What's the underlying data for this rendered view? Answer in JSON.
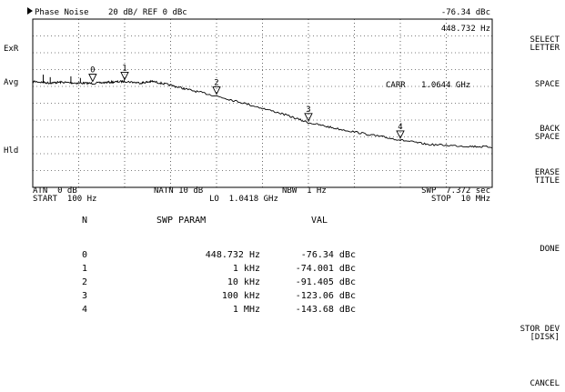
{
  "header": {
    "title": "Phase Noise",
    "scale_ref": "20 dB/ REF 0 dBc",
    "marker_value": "-76.34 dBc",
    "marker_freq": "448.732 Hz"
  },
  "side_labels": [
    "ExR",
    "Avg",
    "Hld"
  ],
  "carrier": {
    "label": "CARR",
    "value": "1.0644 GHz"
  },
  "footer": {
    "atn": "ATN  0 dB",
    "natn": "NATN 10 dB",
    "nbw": "NBW  1 Hz",
    "swp": "SWP  7.372 sec",
    "start": "START  100 Hz",
    "lo": "LO  1.0418 GHz",
    "stop": "STOP  10 MHz"
  },
  "table": {
    "headers": {
      "n": "N",
      "param": "SWP PARAM",
      "val": "VAL"
    },
    "rows": [
      {
        "n": "0",
        "param": "448.732 Hz",
        "val": "-76.34 dBc"
      },
      {
        "n": "1",
        "param": "1 kHz",
        "val": "-74.001 dBc"
      },
      {
        "n": "2",
        "param": "10 kHz",
        "val": "-91.405 dBc"
      },
      {
        "n": "3",
        "param": "100 kHz",
        "val": "-123.06 dBc"
      },
      {
        "n": "4",
        "param": "1 MHz",
        "val": "-143.68 dBc"
      }
    ]
  },
  "softkeys": [
    "SELECT\nLETTER",
    "SPACE",
    "BACK\nSPACE",
    "ERASE\nTITLE",
    "DONE",
    "STOR DEV\n[DISK]",
    "CANCEL"
  ],
  "chart_data": {
    "type": "line",
    "x_scale": "log",
    "xlim": [
      100,
      10000000
    ],
    "ylim": [
      -200,
      0
    ],
    "ylabel": "dBc",
    "grid": true,
    "series": [
      {
        "x": [
          100,
          150,
          200,
          300,
          448.732,
          700,
          1000,
          1500,
          2000,
          3000,
          5000,
          10000,
          20000,
          50000,
          100000,
          200000,
          500000,
          1000000,
          2000000,
          5000000,
          10000000
        ],
        "y": [
          -74,
          -76,
          -75,
          -76,
          -76.34,
          -75,
          -74.001,
          -76,
          -74,
          -78,
          -84,
          -91.405,
          -100,
          -112,
          -123.06,
          -130,
          -138,
          -143.68,
          -149,
          -151,
          -152
        ]
      }
    ],
    "markers": [
      {
        "label": "0",
        "x": 448.732,
        "y": -76.34
      },
      {
        "label": "1",
        "x": 1000,
        "y": -74.001
      },
      {
        "label": "2",
        "x": 10000,
        "y": -91.405
      },
      {
        "label": "3",
        "x": 100000,
        "y": -123.06
      },
      {
        "label": "4",
        "x": 1000000,
        "y": -143.68
      }
    ]
  }
}
